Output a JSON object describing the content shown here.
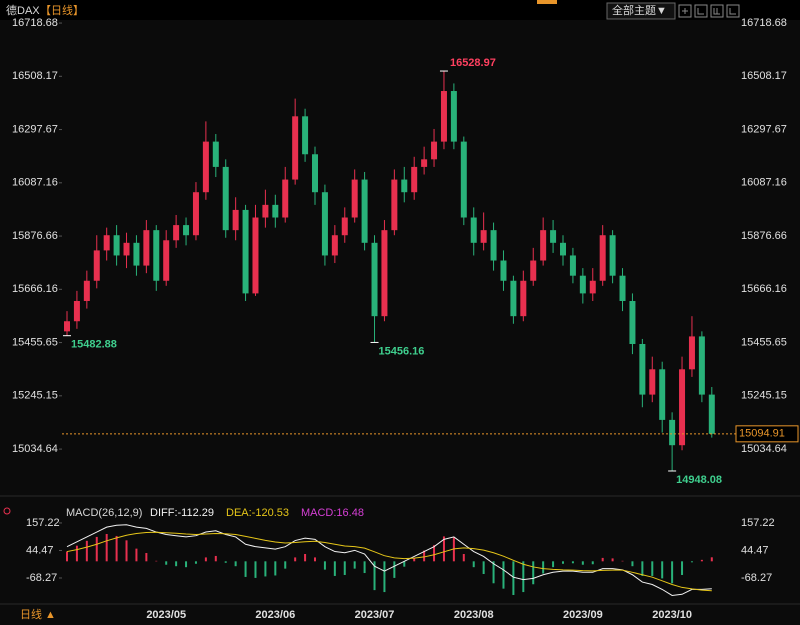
{
  "chart_data": [
    {
      "type": "candlestick",
      "title": "德DAX",
      "period_label": "【日线】",
      "theme_button": "全部主题▼",
      "period_switch": "日线 ▲",
      "categories": [
        null,
        null,
        null,
        null,
        null,
        null,
        null,
        null,
        null,
        null,
        "2023/05",
        null,
        null,
        null,
        null,
        null,
        null,
        null,
        null,
        null,
        null,
        "2023/06",
        null,
        null,
        null,
        null,
        null,
        null,
        null,
        null,
        null,
        "2023/07",
        null,
        null,
        null,
        null,
        null,
        null,
        null,
        null,
        null,
        "2023/08",
        null,
        null,
        null,
        null,
        null,
        null,
        null,
        null,
        null,
        null,
        "2023/09",
        null,
        null,
        null,
        null,
        null,
        null,
        null,
        null,
        "2023/10",
        null,
        null,
        null,
        null
      ],
      "open": [
        15500,
        15540,
        15620,
        15700,
        15820,
        15880,
        15800,
        15850,
        15760,
        15900,
        15700,
        15860,
        15920,
        15880,
        16050,
        16250,
        16150,
        15900,
        15980,
        15650,
        15950,
        16000,
        15950,
        16100,
        16350,
        16200,
        16050,
        15800,
        15880,
        15950,
        16100,
        15850,
        15560,
        15900,
        16100,
        16050,
        16150,
        16180,
        16250,
        16450,
        16250,
        15950,
        15850,
        15900,
        15780,
        15700,
        15560,
        15700,
        15780,
        15900,
        15850,
        15800,
        15720,
        15650,
        15700,
        15880,
        15720,
        15620,
        15450,
        15250,
        15350,
        15150,
        15050,
        15350,
        15480,
        15250
      ],
      "high": [
        15580,
        15660,
        15740,
        15880,
        15910,
        15920,
        15890,
        15880,
        15940,
        15920,
        15900,
        15960,
        15950,
        16090,
        16330,
        16280,
        16180,
        16030,
        16000,
        16000,
        16060,
        16040,
        16150,
        16420,
        16380,
        16230,
        16080,
        15920,
        15990,
        16140,
        16130,
        15880,
        15940,
        16140,
        16150,
        16190,
        16230,
        16300,
        16528.97,
        16480,
        16270,
        15990,
        15970,
        15930,
        15820,
        15720,
        15740,
        15830,
        15950,
        15940,
        15880,
        15830,
        15750,
        15750,
        15920,
        15900,
        15750,
        15650,
        15470,
        15400,
        15380,
        15180,
        15400,
        15560,
        15500,
        15280
      ],
      "low": [
        15482.88,
        15510,
        15590,
        15670,
        15780,
        15760,
        15750,
        15720,
        15730,
        15660,
        15680,
        15830,
        15840,
        15860,
        16020,
        16110,
        15870,
        15860,
        15620,
        15640,
        15910,
        15910,
        15930,
        16080,
        16170,
        16000,
        15760,
        15770,
        15850,
        15930,
        15820,
        15456.16,
        15540,
        15880,
        16010,
        16020,
        16120,
        16150,
        16220,
        16220,
        15920,
        15800,
        15820,
        15740,
        15660,
        15530,
        15540,
        15680,
        15760,
        15810,
        15760,
        15690,
        15610,
        15620,
        15680,
        15690,
        15580,
        15410,
        15200,
        15220,
        15100,
        14948.08,
        15030,
        15320,
        15220,
        15080
      ],
      "close": [
        15540,
        15620,
        15700,
        15820,
        15880,
        15800,
        15850,
        15760,
        15900,
        15700,
        15860,
        15920,
        15880,
        16050,
        16250,
        16150,
        15900,
        15980,
        15650,
        15950,
        16000,
        15950,
        16100,
        16350,
        16200,
        16050,
        15800,
        15880,
        15950,
        16100,
        15850,
        15560,
        15900,
        16100,
        16050,
        16150,
        16180,
        16250,
        16450,
        16250,
        15950,
        15850,
        15900,
        15780,
        15700,
        15560,
        15700,
        15780,
        15900,
        15850,
        15800,
        15720,
        15650,
        15700,
        15880,
        15720,
        15620,
        15450,
        15250,
        15350,
        15150,
        15050,
        15350,
        15480,
        15250,
        15094.91
      ],
      "up_color": "#e8304f",
      "down_color": "#29b27a",
      "high_label_color": "#ff4060",
      "low_label_color": "#3fcf8e",
      "last_price_color": "#e8952a",
      "ylim": [
        14865,
        16790
      ],
      "yticks": [
        16718.68,
        16508.17,
        16297.67,
        16087.16,
        15876.66,
        15666.16,
        15455.65,
        15245.15,
        15034.64
      ],
      "grid": false
    },
    {
      "type": "macd",
      "title": "MACD(26,12,9)",
      "series": [
        {
          "name": "DIFF",
          "legend_label": "DIFF:-112.29",
          "color": "#f2f2f2",
          "values": [
            60,
            80,
            100,
            120,
            140,
            148,
            150,
            140,
            135,
            120,
            110,
            105,
            100,
            105,
            120,
            125,
            110,
            100,
            70,
            60,
            55,
            50,
            60,
            85,
            95,
            90,
            60,
            40,
            35,
            45,
            30,
            -20,
            -40,
            -20,
            0,
            20,
            40,
            60,
            90,
            100,
            70,
            40,
            20,
            -10,
            -35,
            -65,
            -75,
            -70,
            -55,
            -45,
            -40,
            -40,
            -45,
            -45,
            -30,
            -30,
            -35,
            -55,
            -85,
            -95,
            -115,
            -140,
            -135,
            -115,
            -115,
            -112.29
          ]
        },
        {
          "name": "DEA",
          "legend_label": "DEA:-120.53",
          "color": "#e6c619",
          "values": [
            40,
            48,
            58,
            70,
            84,
            96,
            107,
            114,
            118,
            119,
            117,
            115,
            112,
            110,
            112,
            114,
            113,
            110,
            102,
            94,
            86,
            79,
            75,
            77,
            80,
            82,
            77,
            70,
            63,
            60,
            54,
            39,
            23,
            14,
            11,
            13,
            18,
            27,
            39,
            51,
            55,
            52,
            46,
            35,
            21,
            4,
            -12,
            -23,
            -30,
            -33,
            -35,
            -36,
            -38,
            -39,
            -37,
            -36,
            -36,
            -45,
            -55,
            -65,
            -80,
            -95,
            -107,
            -113,
            -118,
            -120.53
          ]
        },
        {
          "name": "MACD",
          "legend_label": "MACD:16.48",
          "color": "#d63fd6",
          "values": [
            40,
            64,
            84,
            100,
            112,
            104,
            86,
            52,
            34,
            2,
            -14,
            -20,
            -24,
            -10,
            16,
            22,
            -6,
            -20,
            -64,
            -68,
            -62,
            -58,
            -30,
            16,
            30,
            16,
            -34,
            -60,
            -56,
            -30,
            -48,
            -118,
            -126,
            -68,
            -22,
            14,
            44,
            66,
            102,
            98,
            30,
            -24,
            -52,
            -90,
            -112,
            -138,
            -126,
            -94,
            -50,
            -24,
            -10,
            -8,
            -14,
            -12,
            14,
            12,
            2,
            -20,
            -60,
            -60,
            -70,
            -90,
            -56,
            -4,
            6,
            16.48
          ]
        }
      ],
      "up_color": "#e8304f",
      "down_color": "#29b27a",
      "ylim": [
        -179,
        198
      ],
      "yticks": [
        157.22,
        44.47,
        -68.27
      ]
    }
  ]
}
